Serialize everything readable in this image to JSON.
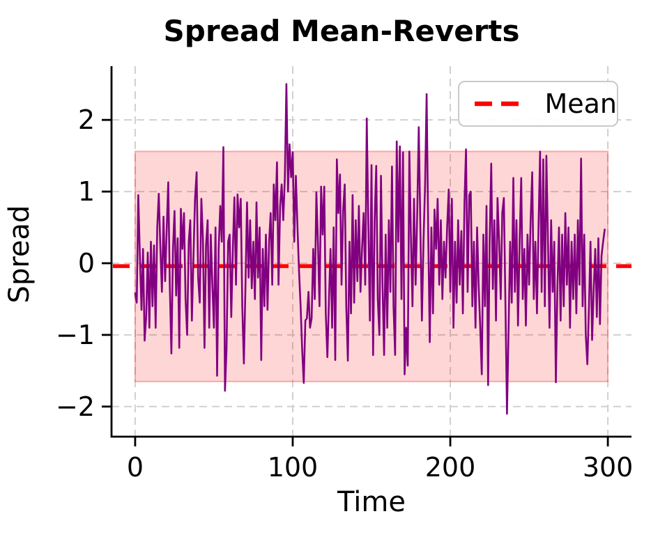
{
  "title": "Spread Mean-Reverts",
  "xlabel": "Time",
  "ylabel": "Spread",
  "legend": {
    "label": "Mean",
    "position": "upper right"
  },
  "colors": {
    "series_line": "#800080",
    "mean_line": "#ff0000",
    "band_fill": "rgba(255,0,0,0.16)",
    "band_edge": "rgba(255,60,60,0.40)",
    "grid": "#d0d0d0",
    "spine": "#000000",
    "text": "#000000",
    "legend_border": "#c9c9c9"
  },
  "chart_data": {
    "type": "line",
    "title": "Spread Mean-Reverts",
    "xlabel": "Time",
    "ylabel": "Spread",
    "xlim": [
      -15,
      315
    ],
    "ylim": [
      -2.42,
      2.75
    ],
    "xticks": [
      0,
      100,
      200,
      300
    ],
    "yticks": [
      -2,
      -1,
      0,
      1,
      2
    ],
    "grid": true,
    "grid_style": "dashed",
    "legend_position": "upper right",
    "mean_line": {
      "label": "Mean",
      "value": -0.04,
      "style": "dashed",
      "color": "#ff0000"
    },
    "band": {
      "x0": 0,
      "x1": 300,
      "y0": -1.65,
      "y1": 1.56
    },
    "series": [
      {
        "name": "Spread",
        "color": "#800080",
        "x_start": 0,
        "x_step": 1,
        "values": [
          -0.42,
          -0.55,
          0.95,
          0.1,
          -0.65,
          0.2,
          -1.08,
          -0.75,
          0.15,
          -0.9,
          0.3,
          -0.6,
          0.25,
          -0.9,
          0.5,
          0.97,
          0.2,
          -0.4,
          0.65,
          -0.25,
          0.45,
          1.13,
          -0.3,
          -1.26,
          0.2,
          0.73,
          -0.45,
          0.35,
          -1.18,
          0.76,
          0.2,
          0.7,
          -0.5,
          -1.0,
          0.3,
          0.6,
          -0.8,
          0.1,
          0.9,
          1.27,
          -0.2,
          -0.55,
          0.9,
          0.35,
          -1.18,
          0.25,
          0.6,
          -0.9,
          0.4,
          -0.3,
          -0.9,
          0.5,
          -1.57,
          0.2,
          0.8,
          0.3,
          1.62,
          -1.78,
          -1.2,
          0.3,
          0.4,
          -0.75,
          0.2,
          0.92,
          -0.3,
          0.96,
          0.5,
          0.9,
          -0.6,
          -1.4,
          -0.3,
          0.85,
          -0.2,
          0.6,
          -0.35,
          0.3,
          -0.5,
          0.85,
          -0.2,
          0.5,
          -1.35,
          0.2,
          -0.6,
          0.4,
          -0.65,
          0.3,
          0.7,
          -0.3,
          1.1,
          0.6,
          1.41,
          -0.3,
          0.8,
          1.1,
          0.6,
          1.2,
          2.5,
          1.0,
          1.66,
          1.2,
          1.55,
          0.3,
          1.22,
          0.5,
          -0.1,
          -0.6,
          -1.2,
          -1.67,
          -0.8,
          -0.77,
          -0.4,
          -0.9,
          -0.77,
          0.2,
          -0.5,
          0.99,
          0.3,
          -0.6,
          1.07,
          0.4,
          1.07,
          -0.7,
          -1.31,
          -0.5,
          0.2,
          -0.9,
          0.5,
          -1.35,
          1.45,
          0.7,
          1.24,
          -0.3,
          0.74,
          1.1,
          -0.6,
          -1.36,
          0.3,
          -0.7,
          0.95,
          -0.55,
          0.6,
          -0.25,
          0.8,
          -0.4,
          0.2,
          0.7,
          -0.3,
          2.02,
          0.5,
          -0.8,
          1.37,
          -1.28,
          0.6,
          1.36,
          -0.5,
          -1.0,
          1.22,
          -0.3,
          -1.28,
          0.4,
          -0.9,
          0.6,
          -0.4,
          1.35,
          -0.6,
          -1.28,
          1.7,
          0.3,
          1.63,
          -0.5,
          1.55,
          -1.55,
          -0.9,
          -1.43,
          1.56,
          0.4,
          -0.6,
          0.9,
          -0.3,
          0.7,
          1.9,
          0.5,
          -0.8,
          0.3,
          1.1,
          2.36,
          0.4,
          -1.1,
          0.5,
          -0.7,
          0.75,
          0.2,
          0.9,
          -0.3,
          0.6,
          -0.5,
          0.3,
          -0.2,
          0.5,
          1.03,
          -0.4,
          0.9,
          -0.9,
          0.3,
          -0.55,
          0.6,
          -0.3,
          0.45,
          -0.7,
          0.85,
          1.59,
          -0.4,
          0.95,
          1.0,
          -0.6,
          0.3,
          -0.9,
          0.5,
          -0.3,
          -0.9,
          -1.55,
          0.4,
          -0.6,
          0.8,
          -1.7,
          0.3,
          1.39,
          -0.36,
          0.6,
          -0.8,
          0.91,
          0.3,
          -0.5,
          0.7,
          0.91,
          -0.6,
          -2.1,
          -0.9,
          0.3,
          -0.55,
          1.19,
          -0.4,
          0.6,
          -0.87,
          0.3,
          1.19,
          -0.5,
          0.2,
          -0.87,
          0.4,
          -0.3,
          0.6,
          1.27,
          -0.5,
          0.3,
          -0.7,
          0.5,
          1.56,
          -0.4,
          1.45,
          -0.6,
          1.5,
          0.3,
          -0.9,
          0.6,
          -0.4,
          0.3,
          -1.66,
          -0.3,
          0.5,
          -0.8,
          0.4,
          -0.6,
          0.7,
          -0.3,
          0.5,
          -0.9,
          0.3,
          -0.5,
          0.4,
          -0.7,
          0.6,
          -0.3,
          1.46,
          -0.6,
          0.4,
          -1.0,
          -1.41,
          -0.6,
          0.3,
          -1.07,
          -0.4,
          0.2,
          -0.75,
          0.35,
          -0.85,
          0.1,
          0.3,
          0.47
        ]
      }
    ]
  }
}
